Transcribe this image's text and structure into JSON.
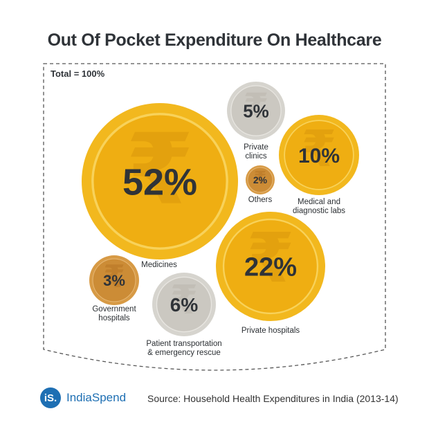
{
  "title": "Out Of Pocket Expenditure On Healthcare",
  "brand": {
    "logo_text": "iS.",
    "name": "IndiaSpend"
  },
  "source": "Source: Household Health Expenditures in India (2013-14)",
  "colors": {
    "gold": "#F2B81E",
    "silver": "#D6D4CE",
    "bronze": "#D79A45",
    "text_dark": "#2F3338",
    "brand_blue": "#1E6FB3"
  },
  "chart_data": {
    "type": "bubble",
    "total_label": "Total = 100%",
    "currency_icon": "rupee-icon",
    "items": [
      {
        "name": "Medicines",
        "label_lines": [
          "Medicines"
        ],
        "value": 52,
        "value_label": "52%",
        "coin": "gold"
      },
      {
        "name": "Private clinics",
        "label_lines": [
          "Private",
          "clinics"
        ],
        "value": 5,
        "value_label": "5%",
        "coin": "silver"
      },
      {
        "name": "Medical and diagnostic labs",
        "label_lines": [
          "Medical and",
          "diagnostic labs"
        ],
        "value": 10,
        "value_label": "10%",
        "coin": "gold"
      },
      {
        "name": "Others",
        "label_lines": [
          "Others"
        ],
        "value": 2,
        "value_label": "2%",
        "coin": "bronze"
      },
      {
        "name": "Private hospitals",
        "label_lines": [
          "Private hospitals"
        ],
        "value": 22,
        "value_label": "22%",
        "coin": "gold"
      },
      {
        "name": "Government hospitals",
        "label_lines": [
          "Government",
          "hospitals"
        ],
        "value": 3,
        "value_label": "3%",
        "coin": "bronze"
      },
      {
        "name": "Patient transportation & emergency rescue",
        "label_lines": [
          "Patient transportation",
          "& emergency rescue"
        ],
        "value": 6,
        "value_label": "6%",
        "coin": "silver"
      }
    ]
  }
}
